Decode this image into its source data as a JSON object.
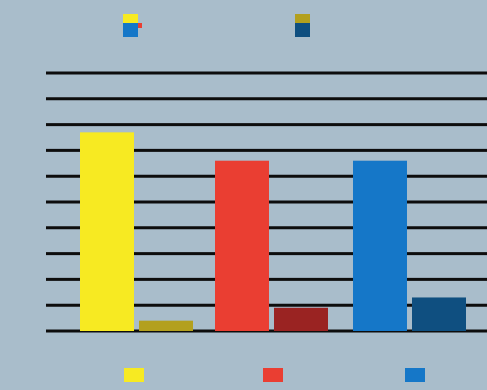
{
  "colors": {
    "background": "#a9bdcb",
    "gridline": "#0d0d0d",
    "primary": [
      "#f7ea22",
      "#ea3e32",
      "#1577c8"
    ],
    "secondary": [
      "#b3a01e",
      "#9a2322",
      "#0f4f80"
    ]
  },
  "chart_data": {
    "type": "bar",
    "title": "",
    "subtitle": "",
    "xlabel": "",
    "ylabel": "",
    "annotation": "",
    "categories": [
      "",
      "",
      ""
    ],
    "ytick_labels": [
      "",
      "",
      "",
      "",
      "",
      "",
      "",
      "",
      "",
      "",
      ""
    ],
    "ylim": [
      0,
      100
    ],
    "grid": true,
    "legend_position": "top",
    "series": [
      {
        "values": [
          77,
          66,
          66
        ],
        "value_labels": [
          "",
          "",
          ""
        ]
      },
      {
        "values": [
          4,
          9,
          13
        ],
        "value_labels": [
          "",
          "",
          ""
        ]
      }
    ],
    "legend": [
      {
        "label": "",
        "colors": [
          "#f7ea22",
          "#ea3e32",
          "#1577c8"
        ]
      },
      {
        "label": "",
        "colors": [
          "#b3a01e",
          "#0f4f80"
        ]
      }
    ],
    "category_icon_colors": [
      "#f7ea22",
      "#ea3e32",
      "#1577c8"
    ]
  }
}
